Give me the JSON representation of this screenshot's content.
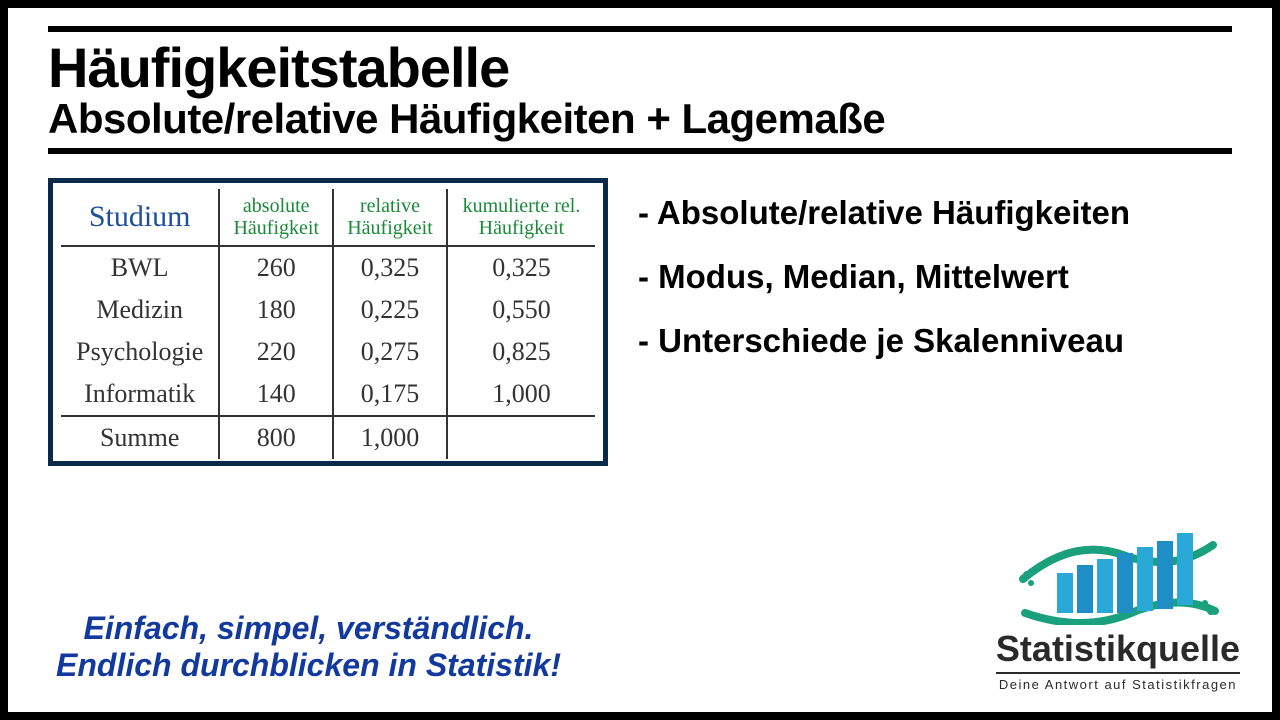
{
  "header": {
    "title": "Häufigkeitstabelle",
    "subtitle": "Absolute/relative Häufigkeiten + Lagemaße",
    "rule_color": "#000000",
    "title_fontsize": 56,
    "subtitle_fontsize": 42
  },
  "table": {
    "type": "table",
    "border_color": "#0a2a4a",
    "header_studium_color": "#1f4e9c",
    "header_data_color": "#1a8a3a",
    "cell_font": "Times New Roman",
    "columns": {
      "studium": "Studium",
      "abs": "absolute Häufigkeit",
      "rel": "relative Häufigkeit",
      "kum": "kumulierte rel. Häufigkeit"
    },
    "rows": [
      {
        "label": "BWL",
        "abs": "260",
        "rel": "0,325",
        "kum": "0,325"
      },
      {
        "label": "Medizin",
        "abs": "180",
        "rel": "0,225",
        "kum": "0,550"
      },
      {
        "label": "Psychologie",
        "abs": "220",
        "rel": "0,275",
        "kum": "0,825"
      },
      {
        "label": "Informatik",
        "abs": "140",
        "rel": "0,175",
        "kum": "1,000"
      }
    ],
    "sum": {
      "label": "Summe",
      "abs": "800",
      "rel": "1,000",
      "kum": ""
    }
  },
  "bullets": {
    "items": [
      "- Absolute/relative Häufigkeiten",
      "- Modus, Median, Mittelwert",
      "- Unterschiede je Skalenniveau"
    ],
    "fontsize": 33
  },
  "tagline": {
    "line1": "Einfach, simpel, verständlich.",
    "line2": "Endlich durchblicken in Statistik!",
    "color": "#123a9e",
    "fontsize": 32
  },
  "logo": {
    "name": "Statistikquelle",
    "slogan": "Deine Antwort auf Statistikfragen",
    "bar_colors": [
      "#2aa9d8",
      "#1f8ec6",
      "#2aa9d8",
      "#1f8ec6",
      "#2aa9d8",
      "#1f8ec6",
      "#2aa9d8"
    ],
    "wave_color": "#1aa07c",
    "text_color": "#2a2a2a"
  }
}
